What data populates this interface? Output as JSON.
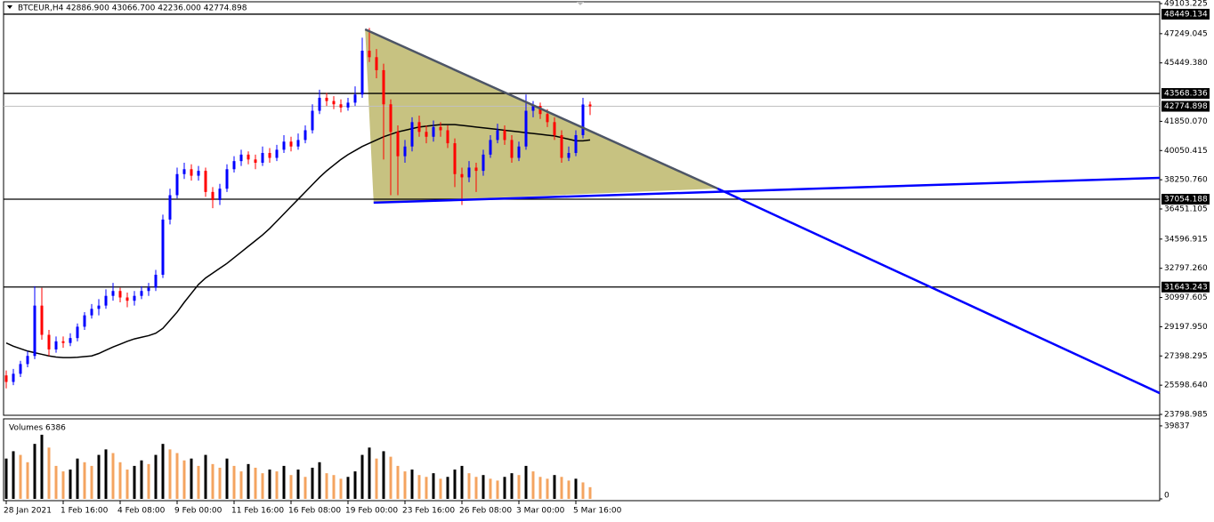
{
  "chart_data": {
    "type": "candlestick",
    "title": "BTCEUR,H4  42886.900 43066.700 42236.000 42774.898",
    "categories": [
      "28 Jan 2021",
      null,
      null,
      null,
      null,
      null,
      null,
      null,
      "1 Feb 16:00",
      null,
      null,
      null,
      null,
      null,
      null,
      null,
      "4 Feb 08:00",
      null,
      null,
      null,
      null,
      null,
      null,
      null,
      "9 Feb 00:00",
      null,
      null,
      null,
      null,
      null,
      null,
      null,
      "11 Feb 16:00",
      null,
      null,
      null,
      null,
      null,
      null,
      null,
      "16 Feb 08:00",
      null,
      null,
      null,
      null,
      null,
      null,
      null,
      "19 Feb 00:00",
      null,
      null,
      null,
      null,
      null,
      null,
      null,
      "23 Feb 16:00",
      null,
      null,
      null,
      null,
      null,
      null,
      null,
      "26 Feb 08:00",
      null,
      null,
      null,
      null,
      null,
      null,
      null,
      "3 Mar 00:00",
      null,
      null,
      null,
      null,
      null,
      null,
      null,
      "5 Mar 16:00",
      null,
      null
    ],
    "open": [
      26200,
      25800,
      26300,
      26900,
      27400,
      30500,
      28700,
      27800,
      28300,
      28200,
      28500,
      29200,
      29900,
      30300,
      30500,
      31100,
      31400,
      31000,
      30800,
      31100,
      31400,
      31600,
      32400,
      35800,
      37300,
      38600,
      38900,
      38500,
      38800,
      37500,
      37000,
      37700,
      38900,
      39400,
      39800,
      39500,
      39300,
      39900,
      39600,
      40100,
      40600,
      40300,
      40700,
      41300,
      42500,
      43300,
      43100,
      42900,
      42700,
      43000,
      43500,
      46200,
      45800,
      45000,
      42900,
      41200,
      39700,
      40300,
      41800,
      41200,
      40900,
      41500,
      41300,
      40500,
      38600,
      38400,
      39000,
      38800,
      39800,
      40700,
      41300,
      40700,
      39600,
      40300,
      42500,
      42800,
      42300,
      41800,
      41000,
      39600,
      39900,
      41000,
      42886.9
    ],
    "high": [
      26500,
      26600,
      27100,
      27700,
      31700,
      31600,
      29000,
      28600,
      28600,
      28800,
      29400,
      30100,
      30600,
      30900,
      31500,
      31900,
      31600,
      31300,
      31400,
      31700,
      31900,
      32700,
      36100,
      37700,
      39000,
      39300,
      39200,
      39100,
      39000,
      37800,
      38000,
      39200,
      39700,
      40100,
      40000,
      39800,
      40300,
      40200,
      40400,
      41000,
      40900,
      41100,
      41600,
      42900,
      43800,
      43600,
      43400,
      43200,
      43300,
      44000,
      47000,
      47600,
      46300,
      45400,
      43200,
      41600,
      40700,
      42100,
      42200,
      41600,
      41900,
      41800,
      41600,
      40800,
      39000,
      39400,
      39300,
      40100,
      41000,
      41700,
      41600,
      41000,
      40600,
      43500,
      43100,
      43000,
      42600,
      42100,
      41300,
      40300,
      41300,
      43300,
      43066.7
    ],
    "low": [
      25400,
      25600,
      26100,
      26700,
      27200,
      28400,
      27400,
      27600,
      27900,
      28000,
      28300,
      29000,
      29700,
      29900,
      30300,
      30800,
      30700,
      30400,
      30500,
      30900,
      31100,
      31400,
      32200,
      35500,
      37100,
      38300,
      38200,
      38200,
      37200,
      36500,
      36700,
      37500,
      38700,
      39100,
      39200,
      38900,
      39100,
      39300,
      39400,
      39900,
      40000,
      40100,
      40500,
      41100,
      42300,
      42800,
      42600,
      42400,
      42500,
      42800,
      43300,
      45500,
      44500,
      39500,
      37300,
      37300,
      39300,
      40000,
      40900,
      40500,
      40600,
      40900,
      40200,
      37800,
      36700,
      38100,
      37500,
      38500,
      39600,
      40500,
      40400,
      39300,
      39400,
      40100,
      42100,
      42000,
      41500,
      40700,
      39300,
      39400,
      39700,
      40800,
      42236
    ],
    "close": [
      25800,
      26300,
      26900,
      27400,
      30500,
      28700,
      27800,
      28300,
      28200,
      28500,
      29200,
      29900,
      30300,
      30500,
      31100,
      31400,
      31000,
      30800,
      31100,
      31400,
      31600,
      32400,
      35800,
      37300,
      38600,
      38900,
      38500,
      38800,
      37500,
      37000,
      37700,
      38900,
      39400,
      39800,
      39500,
      39300,
      39900,
      39600,
      40100,
      40600,
      40300,
      40700,
      41300,
      42500,
      43300,
      43100,
      42900,
      42700,
      43000,
      43500,
      46200,
      45800,
      45000,
      42900,
      41200,
      39700,
      40300,
      41800,
      41200,
      40900,
      41500,
      41300,
      40500,
      38600,
      38400,
      39000,
      38800,
      39800,
      40700,
      41300,
      40700,
      39600,
      40300,
      42500,
      42800,
      42300,
      41800,
      41000,
      39600,
      39900,
      41000,
      42886.9,
      42774.898
    ],
    "up_color": "#0000ff",
    "down_color": "#ff0000",
    "ma": {
      "color": "#000000",
      "values": [
        28200,
        28000,
        27850,
        27700,
        27600,
        27500,
        27400,
        27330,
        27300,
        27300,
        27320,
        27360,
        27400,
        27550,
        27750,
        27950,
        28120,
        28300,
        28450,
        28550,
        28650,
        28800,
        29100,
        29600,
        30100,
        30700,
        31250,
        31800,
        32200,
        32500,
        32800,
        33100,
        33450,
        33800,
        34150,
        34500,
        34850,
        35250,
        35700,
        36150,
        36600,
        37050,
        37500,
        37950,
        38400,
        38800,
        39150,
        39500,
        39800,
        40050,
        40300,
        40500,
        40700,
        40900,
        41050,
        41200,
        41300,
        41400,
        41500,
        41550,
        41600,
        41650,
        41650,
        41650,
        41600,
        41550,
        41500,
        41450,
        41400,
        41350,
        41300,
        41250,
        41200,
        41150,
        41100,
        41050,
        41000,
        40950,
        40850,
        40750,
        40650,
        40650,
        40700
      ]
    },
    "ylim": [
      23798.985,
      49103.225
    ],
    "yticks": [
      49103.225,
      47249.045,
      {
        "value": 45449.38,
        "label": "45449.380"
      },
      {
        "value": 41850.07,
        "label": "41850.070"
      },
      40050.415,
      {
        "value": 38250.76,
        "label": "38250.760"
      },
      36451.105,
      34596.915,
      {
        "value": 32797.26,
        "label": "32797.260"
      },
      30997.605,
      {
        "value": 29197.95,
        "label": "29197.950"
      },
      27398.295,
      {
        "value": 25598.64,
        "label": "25598.640"
      },
      23798.985
    ],
    "levels": {
      "color": "#000000",
      "values": [
        48449.134,
        43568.336,
        37054.188,
        31643.243
      ]
    },
    "current_price": {
      "value": 42774.898,
      "color": "#c0c0c0"
    },
    "triangle": {
      "color": "#bdb76b",
      "points": [
        [
          50.4,
          47515
        ],
        [
          99.9,
          37710
        ],
        [
          51.6,
          36840
        ]
      ]
    },
    "trendlines": [
      {
        "color": "#4d5566",
        "points": [
          [
            50.4,
            47515
          ],
          [
            99.9,
            37710
          ]
        ]
      },
      {
        "color": "#0000ff",
        "points": [
          [
            99.9,
            37710
          ],
          [
            162,
            25110
          ]
        ]
      },
      {
        "color": "#0000ff",
        "points": [
          [
            51.6,
            36840
          ],
          [
            162,
            38370
          ]
        ]
      }
    ],
    "volume_label": "Volumes",
    "volumes": [
      22000,
      26000,
      24000,
      20000,
      30000,
      35000,
      28000,
      18000,
      15000,
      16000,
      22000,
      20000,
      18000,
      24000,
      27000,
      25000,
      20000,
      16000,
      18000,
      21000,
      19000,
      24000,
      30000,
      27000,
      25000,
      21000,
      22000,
      18000,
      24000,
      19000,
      17000,
      22000,
      18000,
      15000,
      19000,
      17000,
      14000,
      16000,
      15000,
      18000,
      13000,
      16000,
      12000,
      17000,
      20000,
      14000,
      13000,
      11000,
      12000,
      15000,
      24000,
      28000,
      22000,
      26000,
      23000,
      18000,
      15000,
      16000,
      13000,
      12000,
      14000,
      11000,
      12000,
      16000,
      18000,
      14000,
      12000,
      13000,
      11000,
      10000,
      12000,
      14000,
      13000,
      18000,
      15000,
      12000,
      11000,
      13000,
      12000,
      10000,
      11000,
      9000,
      6386
    ],
    "volume_up_color": "#000000",
    "volume_down_color": "#f4a460",
    "volume_ylim": [
      0,
      43677
    ],
    "volume_ticks": [
      39837,
      0
    ]
  }
}
